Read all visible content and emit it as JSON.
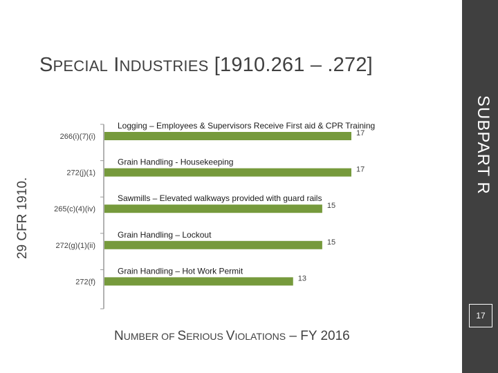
{
  "slide": {
    "title_lead_cap": "S",
    "title_lead_rest": "PECIAL",
    "title_second_cap": "I",
    "title_second_rest": "NDUSTRIES",
    "title_range": "[1910.261 – .272]",
    "left_vertical": "29 CFR 1910.",
    "right_vertical": "SUBPART R",
    "page_number": "17",
    "footer_n": "N",
    "footer_umber": "UMBER OF ",
    "footer_s": "S",
    "footer_erious": "ERIOUS ",
    "footer_v": "V",
    "footer_iolations": "IOLATIONS",
    "footer_tail": " – FY 2016"
  },
  "colors": {
    "bar": "#769a3c",
    "band": "#404040",
    "axis": "#999999",
    "text": "#404040"
  },
  "chart_data": {
    "type": "bar",
    "orientation": "horizontal",
    "categories": [
      "266(i)(7)(i)",
      "272(j)(1)",
      "265(c)(4)(iv)",
      "272(g)(1)(ii)",
      "272(f)"
    ],
    "bar_labels": [
      "Logging – Employees & Supervisors Receive First aid & CPR Training",
      "Grain Handling - Housekeeping",
      "Sawmills – Elevated walkways provided with guard rails",
      "Grain Handling – Lockout",
      "Grain Handling – Hot Work Permit"
    ],
    "values": [
      17,
      17,
      15,
      15,
      13
    ],
    "xlim": [
      0,
      17
    ],
    "grid": false,
    "legend": "none"
  }
}
